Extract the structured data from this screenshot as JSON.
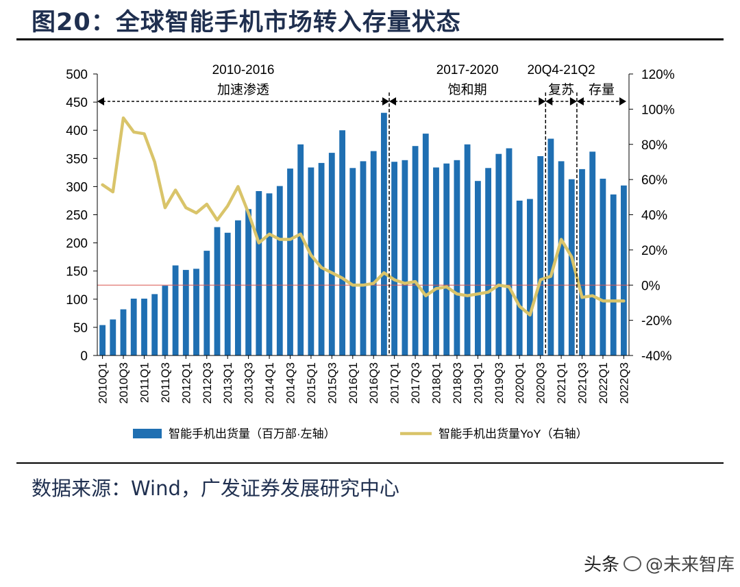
{
  "header": {
    "title": "图20：全球智能手机市场转入存量状态"
  },
  "footer": {
    "source": "数据来源：Wind，广发证券发展研究中心"
  },
  "watermark": {
    "platform": "头条",
    "brand": "@未来智库"
  },
  "chart_data": {
    "type": "bar+line",
    "title": "图20：全球智能手机市场转入存量状态",
    "categories": [
      "2010Q1",
      "2010Q2",
      "2010Q3",
      "2010Q4",
      "2011Q1",
      "2011Q2",
      "2011Q3",
      "2011Q4",
      "2012Q1",
      "2012Q2",
      "2012Q3",
      "2012Q4",
      "2013Q1",
      "2013Q2",
      "2013Q3",
      "2013Q4",
      "2014Q1",
      "2014Q2",
      "2014Q3",
      "2014Q4",
      "2015Q1",
      "2015Q2",
      "2015Q3",
      "2015Q4",
      "2016Q1",
      "2016Q2",
      "2016Q3",
      "2016Q4",
      "2017Q1",
      "2017Q2",
      "2017Q3",
      "2017Q4",
      "2018Q1",
      "2018Q2",
      "2018Q3",
      "2018Q4",
      "2019Q1",
      "2019Q2",
      "2019Q3",
      "2019Q4",
      "2020Q1",
      "2020Q2",
      "2020Q3",
      "2020Q4",
      "2021Q1",
      "2021Q2",
      "2021Q3",
      "2021Q4",
      "2022Q1",
      "2022Q2",
      "2022Q3"
    ],
    "tick_labels": [
      "2010Q1",
      "2010Q3",
      "2011Q1",
      "2011Q3",
      "2012Q1",
      "2012Q3",
      "2013Q1",
      "2013Q3",
      "2014Q1",
      "2014Q3",
      "2015Q1",
      "2015Q3",
      "2016Q1",
      "2016Q3",
      "2017Q1",
      "2017Q3",
      "2018Q1",
      "2018Q3",
      "2019Q1",
      "2019Q3",
      "2020Q1",
      "2020Q3",
      "2021Q1",
      "2021Q3",
      "2022Q1",
      "2022Q3"
    ],
    "series": [
      {
        "name": "智能手机出货量（百万部·左轴）",
        "type": "bar",
        "axis": "left",
        "color": "#1f6fb2",
        "values": [
          54,
          64,
          82,
          101,
          101,
          109,
          124,
          160,
          152,
          154,
          186,
          228,
          218,
          240,
          260,
          292,
          288,
          301,
          332,
          375,
          334,
          342,
          360,
          400,
          333,
          345,
          363,
          431,
          344,
          347,
          372,
          394,
          334,
          341,
          347,
          375,
          310,
          333,
          358,
          368,
          275,
          278,
          354,
          385,
          345,
          313,
          331,
          362,
          314,
          286,
          302
        ]
      },
      {
        "name": "智能手机出货量YoY（右轴）",
        "type": "line",
        "axis": "right",
        "color": "#d9c46a",
        "values": [
          57,
          53,
          95,
          87,
          86,
          70,
          44,
          54,
          44,
          41,
          46,
          37,
          45,
          56,
          41,
          24,
          29,
          26,
          26,
          29,
          17,
          10,
          7,
          4,
          0,
          0,
          1,
          7,
          3,
          1,
          2,
          -6,
          -2,
          -1,
          -5,
          -6,
          -5,
          -4,
          0,
          -1,
          -12,
          -17,
          3,
          5,
          26,
          16,
          -7,
          -6,
          -9,
          -9,
          -9
        ]
      }
    ],
    "y_left": {
      "min": 0,
      "max": 500,
      "ticks": [
        0,
        50,
        100,
        150,
        200,
        250,
        300,
        350,
        400,
        450,
        500
      ]
    },
    "y_right": {
      "min": -40,
      "max": 120,
      "ticks": [
        "-40%",
        "-20%",
        "0%",
        "20%",
        "40%",
        "60%",
        "80%",
        "100%",
        "120%"
      ]
    },
    "reference_line": {
      "value": 0,
      "axis": "right",
      "color": "#d9534f"
    },
    "periods": [
      {
        "range": "2010-2016",
        "label": "加速渗透",
        "start": "2010Q1",
        "end": "2016Q4"
      },
      {
        "range": "2017-2020",
        "label": "饱和期",
        "start": "2017Q1",
        "end": "2020Q3"
      },
      {
        "range": "20Q4-21Q2",
        "label": "复苏",
        "start": "2020Q4",
        "end": "2021Q2"
      },
      {
        "range": "",
        "label": "存量",
        "start": "2021Q3",
        "end": "2022Q3"
      }
    ],
    "legend_position": "bottom"
  }
}
